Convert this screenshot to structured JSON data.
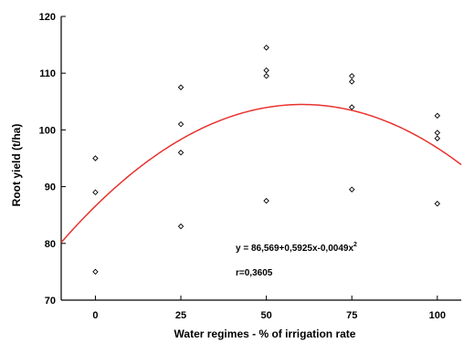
{
  "chart_data": {
    "type": "scatter",
    "xlabel": "Water regimes - % of irrigation rate",
    "ylabel": "Root yield (t/ha)",
    "xlim": [
      -10,
      107
    ],
    "ylim": [
      70,
      120
    ],
    "x_ticks": [
      "0",
      "25",
      "50",
      "75",
      "100"
    ],
    "y_ticks": [
      "70",
      "80",
      "90",
      "100",
      "110",
      "120"
    ],
    "x_tick_values": [
      0,
      25,
      50,
      75,
      100
    ],
    "y_tick_values": [
      70,
      80,
      90,
      100,
      110,
      120
    ],
    "grid": false,
    "series": [
      {
        "marker": "diamond",
        "color": "#000000",
        "points": [
          {
            "x": 0,
            "y": 75
          },
          {
            "x": 0,
            "y": 89
          },
          {
            "x": 0,
            "y": 95
          },
          {
            "x": 25,
            "y": 83
          },
          {
            "x": 25,
            "y": 96
          },
          {
            "x": 25,
            "y": 101
          },
          {
            "x": 25,
            "y": 107.5
          },
          {
            "x": 50,
            "y": 87.5
          },
          {
            "x": 50,
            "y": 109.5
          },
          {
            "x": 50,
            "y": 110.5
          },
          {
            "x": 50,
            "y": 114.5
          },
          {
            "x": 75,
            "y": 89.5
          },
          {
            "x": 75,
            "y": 104
          },
          {
            "x": 75,
            "y": 108.5
          },
          {
            "x": 75,
            "y": 109.5
          },
          {
            "x": 100,
            "y": 87
          },
          {
            "x": 100,
            "y": 98.5
          },
          {
            "x": 100,
            "y": 99.5
          },
          {
            "x": 100,
            "y": 102.5
          }
        ]
      }
    ],
    "fit": {
      "color": "#e8322e",
      "intercept": 86.569,
      "linear": 0.5925,
      "quadratic": -0.0049
    },
    "annotations": {
      "equation": "y = 86,569+0,5925x-0,0049x",
      "equation_exponent": "2",
      "r": "r=0,3605"
    }
  }
}
